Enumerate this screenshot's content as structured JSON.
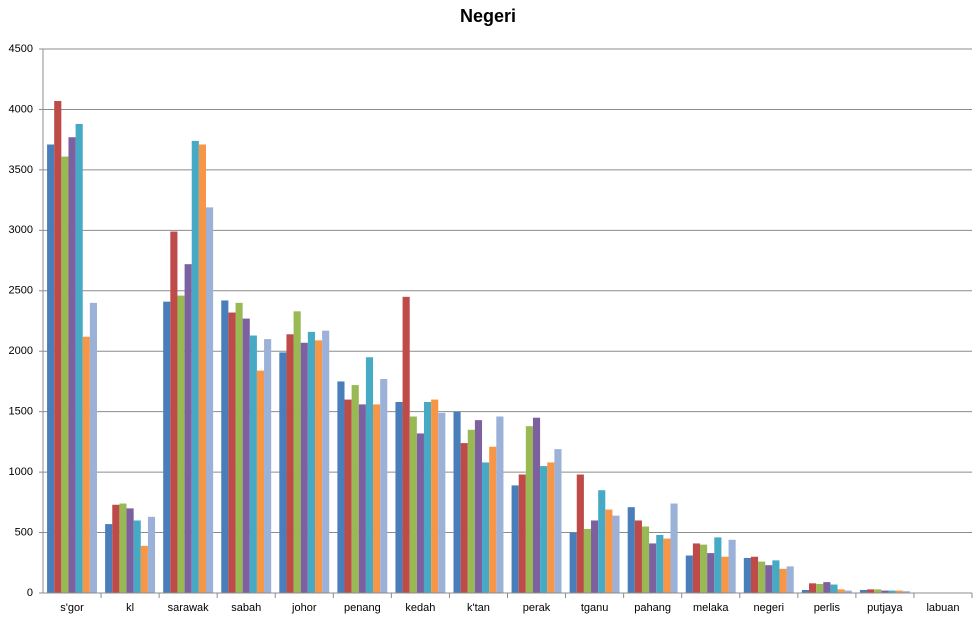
{
  "chart_data": {
    "type": "bar",
    "title": "Negeri",
    "categories": [
      "s'gor",
      "kl",
      "sarawak",
      "sabah",
      "johor",
      "penang",
      "kedah",
      "k'tan",
      "perak",
      "tganu",
      "pahang",
      "melaka",
      "negeri",
      "perlis",
      "putjaya",
      "labuan"
    ],
    "series": [
      {
        "color": "#4a7ebb",
        "values": [
          3710,
          570,
          2410,
          2420,
          1990,
          1750,
          1580,
          1500,
          890,
          500,
          710,
          310,
          290,
          25,
          25,
          0
        ]
      },
      {
        "color": "#be4b48",
        "values": [
          4070,
          730,
          2990,
          2320,
          2140,
          1600,
          2450,
          1240,
          980,
          980,
          600,
          410,
          300,
          80,
          30,
          0
        ]
      },
      {
        "color": "#98b954",
        "values": [
          3610,
          740,
          2460,
          2400,
          2330,
          1720,
          1460,
          1350,
          1380,
          530,
          550,
          400,
          260,
          75,
          30,
          0
        ]
      },
      {
        "color": "#7d60a0",
        "values": [
          3770,
          700,
          2720,
          2270,
          2070,
          1560,
          1320,
          1430,
          1450,
          600,
          410,
          330,
          230,
          90,
          20,
          0
        ]
      },
      {
        "color": "#46aac5",
        "values": [
          3880,
          600,
          3740,
          2130,
          2160,
          1950,
          1580,
          1080,
          1050,
          850,
          480,
          460,
          270,
          70,
          20,
          0
        ]
      },
      {
        "color": "#f79646",
        "values": [
          2120,
          390,
          3710,
          1840,
          2090,
          1560,
          1600,
          1210,
          1080,
          690,
          450,
          300,
          200,
          30,
          20,
          0
        ]
      },
      {
        "color": "#9bb1d8",
        "values": [
          2400,
          630,
          3190,
          2100,
          2170,
          1770,
          1490,
          1460,
          1190,
          640,
          740,
          440,
          220,
          20,
          15,
          0
        ]
      }
    ],
    "ylim": [
      0,
      4500
    ],
    "yticks": [
      0,
      500,
      1000,
      1500,
      2000,
      2500,
      3000,
      3500,
      4000,
      4500
    ],
    "grid": true
  }
}
